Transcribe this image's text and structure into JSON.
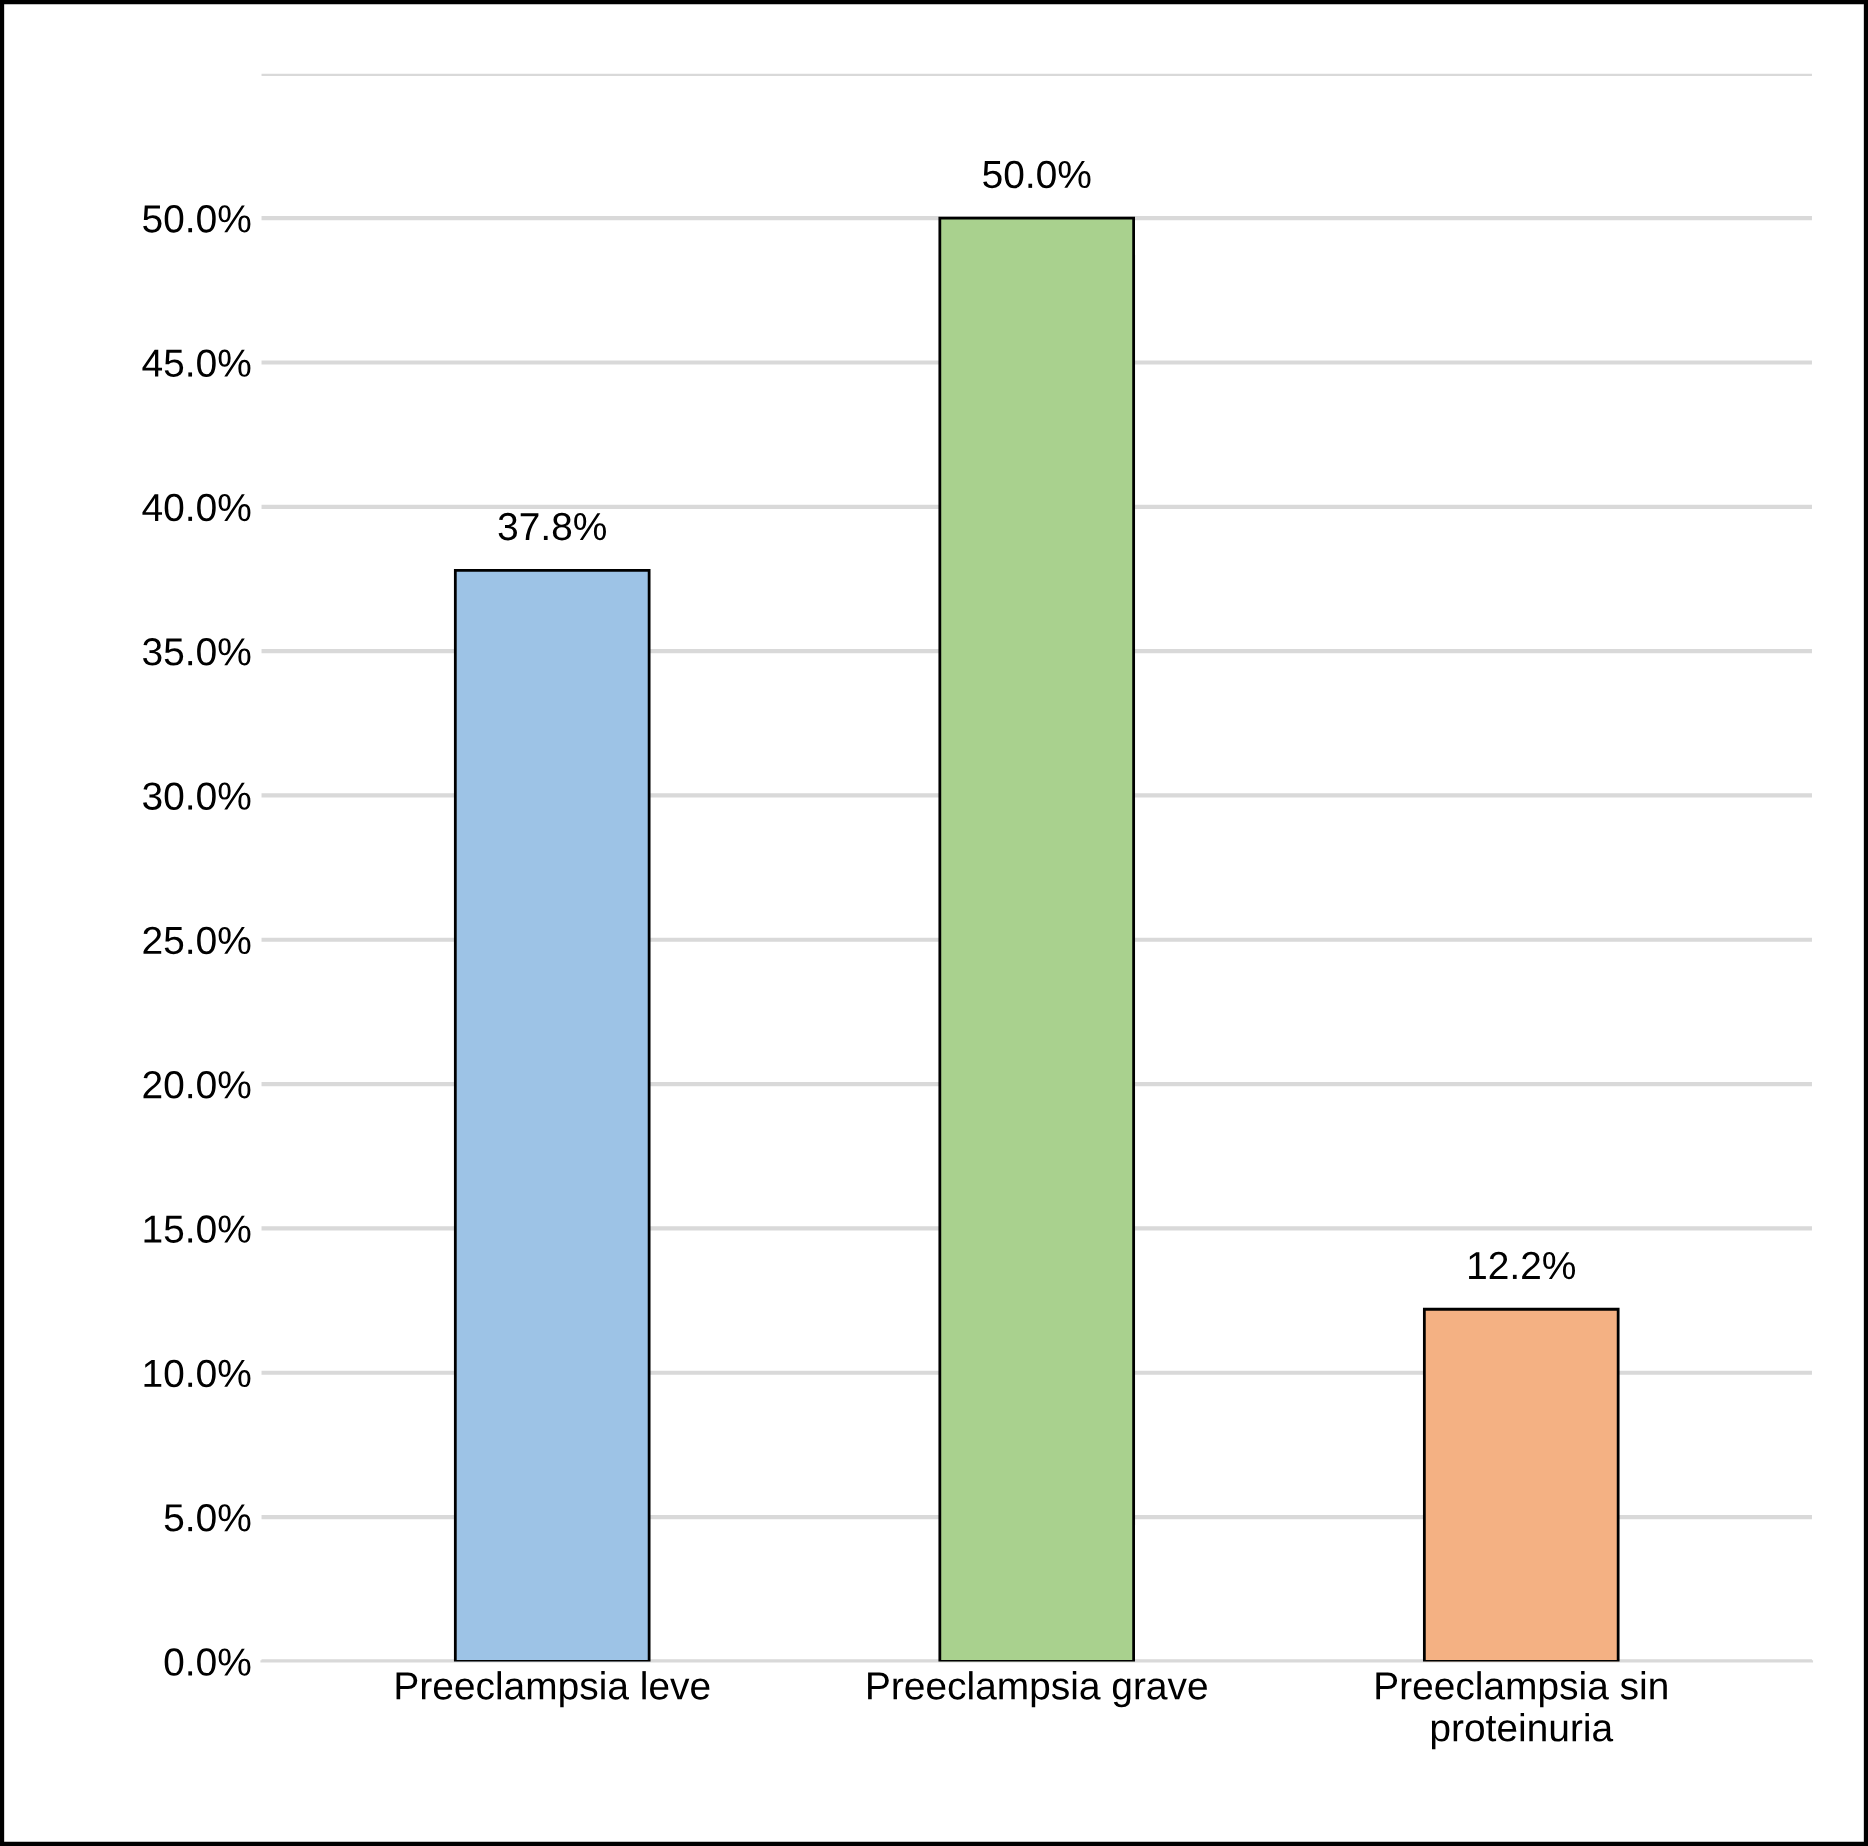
{
  "chart_data": {
    "type": "bar",
    "categories": [
      "Preeclampsia leve",
      "Preeclampsia grave",
      "Preeclampsia sin\nproteinuria"
    ],
    "values": [
      37.8,
      50.0,
      12.2
    ],
    "colors": [
      "#9dc3e6",
      "#a9d18e",
      "#f4b183"
    ],
    "value_labels": [
      "37.8%",
      "50.0%",
      "12.2%"
    ],
    "ylim": [
      0,
      55
    ],
    "yticks": [
      {
        "value": 0,
        "label": "0.0%"
      },
      {
        "value": 5,
        "label": "5.0%"
      },
      {
        "value": 10,
        "label": "10.0%"
      },
      {
        "value": 15,
        "label": "15.0%"
      },
      {
        "value": 20,
        "label": "20.0%"
      },
      {
        "value": 25,
        "label": "25.0%"
      },
      {
        "value": 30,
        "label": "30.0%"
      },
      {
        "value": 35,
        "label": "35.0%"
      },
      {
        "value": 40,
        "label": "40.0%"
      },
      {
        "value": 45,
        "label": "45.0%"
      },
      {
        "value": 50,
        "label": "50.0%"
      },
      {
        "value": 55,
        "label": null
      }
    ],
    "grid": "y",
    "legend": false
  }
}
